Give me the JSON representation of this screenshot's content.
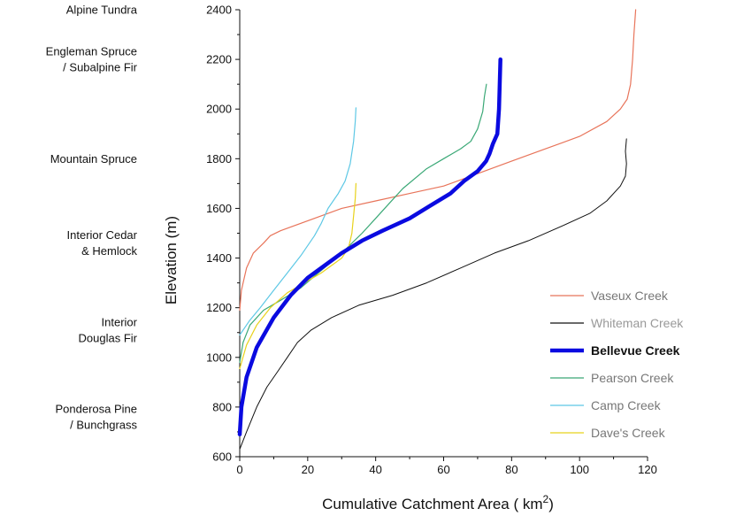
{
  "chart_data": {
    "type": "line",
    "xlabel": "Cumulative Catchment Area ( km",
    "xlabel_sup": "2",
    "xlabel_end": ")",
    "ylabel": "Elevation (m)",
    "xlim": [
      0,
      120
    ],
    "ylim": [
      600,
      2400
    ],
    "xticks": [
      0,
      20,
      40,
      60,
      80,
      100,
      120
    ],
    "yticks": [
      600,
      800,
      1000,
      1200,
      1400,
      1600,
      1800,
      2000,
      2200,
      2400
    ],
    "grid": false,
    "legend_position": "bottom-right",
    "zones": [
      {
        "lines": [
          "Alpine Tundra"
        ],
        "elevation": 2400
      },
      {
        "lines": [
          "Engleman Spruce",
          "/ Subalpine Fir"
        ],
        "elevation": 2200
      },
      {
        "lines": [
          "Mountain Spruce"
        ],
        "elevation": 1800
      },
      {
        "lines": [
          "Interior Cedar",
          "& Hemlock"
        ],
        "elevation": 1460
      },
      {
        "lines": [
          "Interior",
          "Douglas Fir"
        ],
        "elevation": 1110
      },
      {
        "lines": [
          "Ponderosa Pine",
          "/ Bunchgrass"
        ],
        "elevation": 760
      }
    ],
    "series": [
      {
        "name": "Vaseux Creek",
        "color": "#e8745a",
        "width": 1.2,
        "bold": false,
        "label_color": "#777777",
        "points": [
          [
            0,
            1190
          ],
          [
            0.5,
            1270
          ],
          [
            2,
            1360
          ],
          [
            4,
            1420
          ],
          [
            7,
            1460
          ],
          [
            9,
            1490
          ],
          [
            12,
            1510
          ],
          [
            16,
            1530
          ],
          [
            22,
            1560
          ],
          [
            30,
            1600
          ],
          [
            40,
            1630
          ],
          [
            50,
            1660
          ],
          [
            60,
            1690
          ],
          [
            70,
            1740
          ],
          [
            80,
            1790
          ],
          [
            90,
            1840
          ],
          [
            100,
            1890
          ],
          [
            108,
            1950
          ],
          [
            112,
            2000
          ],
          [
            114,
            2040
          ],
          [
            115,
            2100
          ],
          [
            115.6,
            2200
          ],
          [
            116,
            2300
          ],
          [
            116.5,
            2400
          ]
        ]
      },
      {
        "name": "Whiteman Creek",
        "color": "#111111",
        "width": 1.0,
        "bold": false,
        "label_color": "#999999",
        "points": [
          [
            0,
            630
          ],
          [
            2,
            700
          ],
          [
            5,
            800
          ],
          [
            8,
            880
          ],
          [
            11,
            940
          ],
          [
            14,
            1000
          ],
          [
            17,
            1060
          ],
          [
            21,
            1110
          ],
          [
            27,
            1160
          ],
          [
            35,
            1210
          ],
          [
            45,
            1250
          ],
          [
            55,
            1300
          ],
          [
            65,
            1360
          ],
          [
            75,
            1420
          ],
          [
            85,
            1470
          ],
          [
            95,
            1530
          ],
          [
            103,
            1580
          ],
          [
            108,
            1630
          ],
          [
            112,
            1690
          ],
          [
            113.5,
            1730
          ],
          [
            113.8,
            1780
          ],
          [
            113.5,
            1830
          ],
          [
            113.8,
            1880
          ]
        ]
      },
      {
        "name": "Bellevue Creek",
        "color": "#0a0ae0",
        "width": 4.5,
        "bold": true,
        "label_color": "#111111",
        "points": [
          [
            0,
            690
          ],
          [
            0.5,
            800
          ],
          [
            2,
            920
          ],
          [
            5,
            1040
          ],
          [
            10,
            1160
          ],
          [
            15,
            1250
          ],
          [
            20,
            1320
          ],
          [
            25,
            1370
          ],
          [
            30,
            1420
          ],
          [
            36,
            1470
          ],
          [
            42,
            1510
          ],
          [
            50,
            1560
          ],
          [
            56,
            1610
          ],
          [
            62,
            1660
          ],
          [
            66,
            1710
          ],
          [
            70,
            1750
          ],
          [
            72.5,
            1790
          ],
          [
            73.5,
            1820
          ],
          [
            74.5,
            1860
          ],
          [
            75.8,
            1900
          ],
          [
            76.3,
            2000
          ],
          [
            76.5,
            2100
          ],
          [
            76.7,
            2200
          ]
        ]
      },
      {
        "name": "Pearson Creek",
        "color": "#3aa876",
        "width": 1.2,
        "bold": false,
        "label_color": "#777777",
        "points": [
          [
            0,
            980
          ],
          [
            1,
            1060
          ],
          [
            3,
            1130
          ],
          [
            7,
            1190
          ],
          [
            12,
            1230
          ],
          [
            18,
            1280
          ],
          [
            24,
            1350
          ],
          [
            30,
            1420
          ],
          [
            36,
            1500
          ],
          [
            40,
            1560
          ],
          [
            44,
            1620
          ],
          [
            48,
            1680
          ],
          [
            55,
            1760
          ],
          [
            60,
            1800
          ],
          [
            65,
            1840
          ],
          [
            68,
            1870
          ],
          [
            70,
            1920
          ],
          [
            71.5,
            1990
          ],
          [
            72,
            2050
          ],
          [
            72.6,
            2100
          ]
        ]
      },
      {
        "name": "Camp Creek",
        "color": "#5ec8e5",
        "width": 1.2,
        "bold": false,
        "label_color": "#777777",
        "points": [
          [
            0,
            1090
          ],
          [
            3,
            1150
          ],
          [
            6,
            1200
          ],
          [
            10,
            1270
          ],
          [
            14,
            1340
          ],
          [
            18,
            1410
          ],
          [
            22,
            1490
          ],
          [
            24,
            1540
          ],
          [
            26,
            1600
          ],
          [
            29,
            1660
          ],
          [
            31,
            1710
          ],
          [
            32.5,
            1780
          ],
          [
            33.5,
            1870
          ],
          [
            34,
            1950
          ],
          [
            34.2,
            2005
          ]
        ]
      },
      {
        "name": "Dave's Creek",
        "color": "#e8d21c",
        "width": 1.2,
        "bold": false,
        "label_color": "#777777",
        "points": [
          [
            0,
            955
          ],
          [
            2,
            1050
          ],
          [
            5,
            1130
          ],
          [
            9,
            1200
          ],
          [
            14,
            1260
          ],
          [
            19,
            1300
          ],
          [
            24,
            1340
          ],
          [
            27,
            1370
          ],
          [
            30,
            1400
          ],
          [
            32,
            1440
          ],
          [
            33,
            1500
          ],
          [
            33.5,
            1570
          ],
          [
            34,
            1640
          ],
          [
            34.2,
            1700
          ]
        ]
      }
    ]
  }
}
